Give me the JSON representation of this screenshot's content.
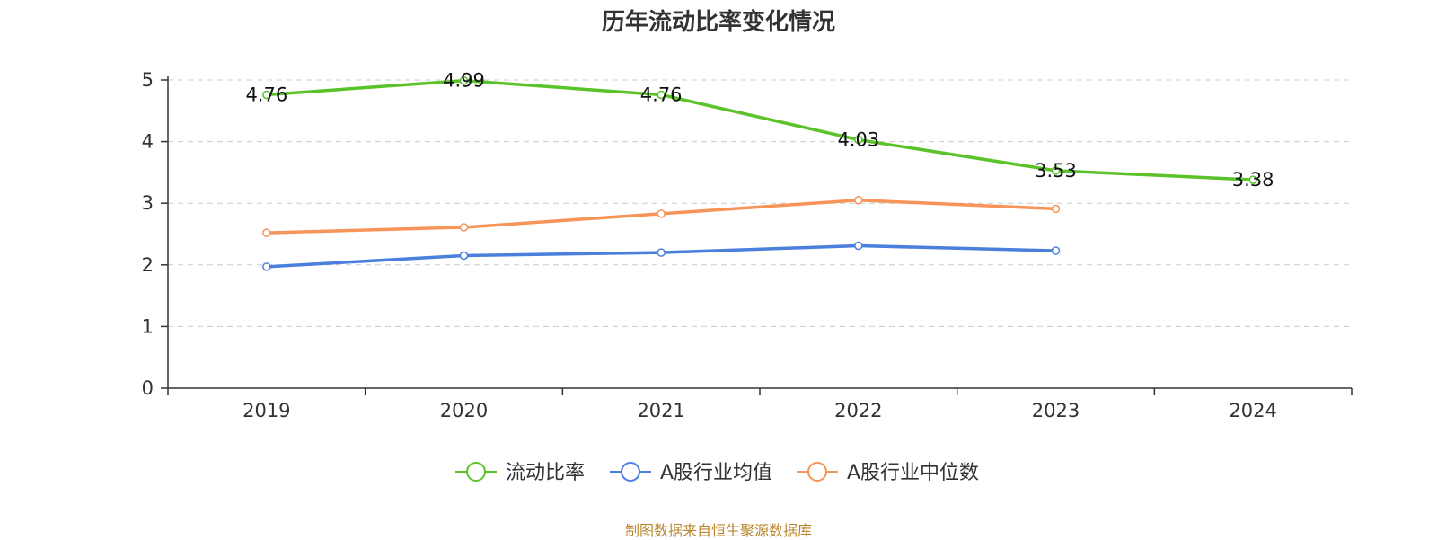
{
  "chart_data": {
    "type": "line",
    "title": "历年流动比率变化情况",
    "categories": [
      "2019",
      "2020",
      "2021",
      "2022",
      "2023",
      "2024"
    ],
    "ylim": [
      0,
      5
    ],
    "yticks": [
      0,
      1,
      2,
      3,
      4,
      5
    ],
    "grid": true,
    "legend_position": "bottom",
    "series": [
      {
        "name": "流动比率",
        "color": "#5cc22a",
        "values": [
          4.76,
          4.99,
          4.76,
          4.03,
          3.53,
          3.38
        ],
        "labels": [
          "4.76",
          "4.99",
          "4.76",
          "4.03",
          "3.53",
          "3.38"
        ]
      },
      {
        "name": "A股行业均值",
        "color": "#4a7fdc",
        "values": [
          1.97,
          2.15,
          2.2,
          2.31,
          2.23,
          null
        ]
      },
      {
        "name": "A股行业中位数",
        "color": "#f79458",
        "values": [
          2.52,
          2.61,
          2.83,
          3.05,
          2.91,
          null
        ]
      }
    ]
  },
  "footer": {
    "source": "制图数据来自恒生聚源数据库"
  }
}
